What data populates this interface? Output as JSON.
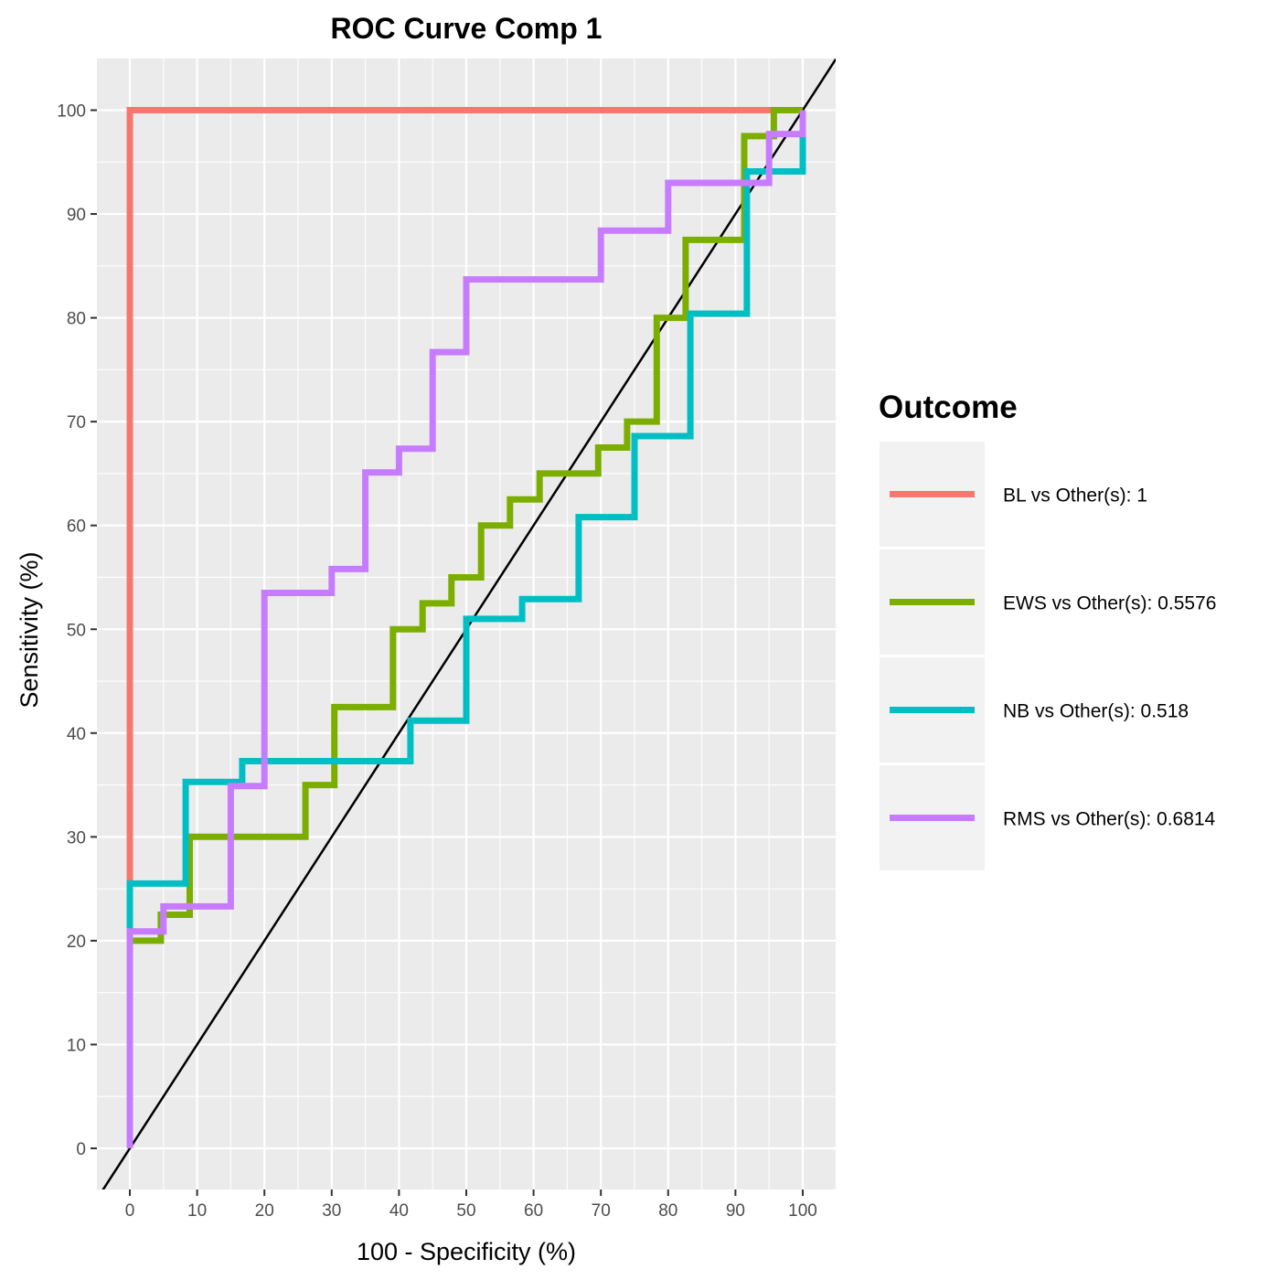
{
  "chart_data": {
    "type": "line",
    "title": "ROC Curve Comp 1",
    "xlabel": "100 - Specificity (%)",
    "ylabel": "Sensitivity (%)",
    "xlim": [
      -5,
      105
    ],
    "ylim": [
      -5,
      105
    ],
    "x_ticks": [
      "0",
      "10",
      "20",
      "30",
      "40",
      "50",
      "60",
      "70",
      "80",
      "90",
      "100"
    ],
    "y_ticks": [
      "0",
      "10",
      "20",
      "30",
      "40",
      "50",
      "60",
      "70",
      "80",
      "90",
      "100"
    ],
    "grid": true,
    "legend_title": "Outcome",
    "legend_position": "right",
    "reference_line": {
      "x": [
        0,
        100
      ],
      "y": [
        0,
        100
      ],
      "color": "#000000"
    },
    "series": [
      {
        "name": "BL vs Other(s): 1",
        "color": "#F8766D",
        "points": [
          [
            0,
            0
          ],
          [
            0,
            100
          ],
          [
            100,
            100
          ]
        ]
      },
      {
        "name": "EWS vs Other(s): 0.5576",
        "color": "#7CAE00",
        "points": [
          [
            0,
            0
          ],
          [
            0,
            20
          ],
          [
            4.6,
            20
          ],
          [
            4.6,
            22.5
          ],
          [
            8.9,
            22.5
          ],
          [
            8.9,
            30
          ],
          [
            26.1,
            30
          ],
          [
            26.1,
            35
          ],
          [
            30.4,
            35
          ],
          [
            30.4,
            42.5
          ],
          [
            39.1,
            42.5
          ],
          [
            39.1,
            50
          ],
          [
            43.5,
            50
          ],
          [
            43.5,
            52.5
          ],
          [
            47.8,
            52.5
          ],
          [
            47.8,
            55
          ],
          [
            52.2,
            55
          ],
          [
            52.2,
            60
          ],
          [
            56.5,
            60
          ],
          [
            56.5,
            62.5
          ],
          [
            60.9,
            62.5
          ],
          [
            60.9,
            65
          ],
          [
            69.6,
            65
          ],
          [
            69.6,
            67.5
          ],
          [
            73.9,
            67.5
          ],
          [
            73.9,
            70
          ],
          [
            78.3,
            70
          ],
          [
            78.3,
            80
          ],
          [
            82.6,
            80
          ],
          [
            82.6,
            87.5
          ],
          [
            91.3,
            87.5
          ],
          [
            91.3,
            97.5
          ],
          [
            95.7,
            97.5
          ],
          [
            95.7,
            100
          ],
          [
            100,
            100
          ]
        ]
      },
      {
        "name": "NB vs Other(s): 0.518",
        "color": "#00BFC4",
        "points": [
          [
            0,
            0
          ],
          [
            0,
            25.5
          ],
          [
            8.3,
            25.5
          ],
          [
            8.3,
            35.3
          ],
          [
            16.7,
            35.3
          ],
          [
            16.7,
            37.3
          ],
          [
            41.7,
            37.3
          ],
          [
            41.7,
            41.2
          ],
          [
            50,
            41.2
          ],
          [
            50,
            51
          ],
          [
            58.3,
            51
          ],
          [
            58.3,
            52.9
          ],
          [
            66.7,
            52.9
          ],
          [
            66.7,
            60.8
          ],
          [
            75,
            60.8
          ],
          [
            75,
            68.6
          ],
          [
            83.3,
            68.6
          ],
          [
            83.3,
            80.4
          ],
          [
            91.7,
            80.4
          ],
          [
            91.7,
            94.1
          ],
          [
            100,
            94.1
          ],
          [
            100,
            100
          ]
        ]
      },
      {
        "name": "RMS vs Other(s): 0.6814",
        "color": "#C77CFF",
        "points": [
          [
            0,
            0
          ],
          [
            0,
            20.9
          ],
          [
            5,
            20.9
          ],
          [
            5,
            23.3
          ],
          [
            15,
            23.3
          ],
          [
            15,
            34.9
          ],
          [
            20,
            34.9
          ],
          [
            20,
            53.5
          ],
          [
            30,
            53.5
          ],
          [
            30,
            55.8
          ],
          [
            35,
            55.8
          ],
          [
            35,
            65.1
          ],
          [
            40,
            65.1
          ],
          [
            40,
            67.4
          ],
          [
            45,
            67.4
          ],
          [
            45,
            76.7
          ],
          [
            50,
            76.7
          ],
          [
            50,
            83.7
          ],
          [
            70,
            83.7
          ],
          [
            70,
            88.4
          ],
          [
            80,
            88.4
          ],
          [
            80,
            93
          ],
          [
            95,
            93
          ],
          [
            95,
            97.7
          ],
          [
            100,
            97.7
          ],
          [
            100,
            100
          ]
        ]
      }
    ]
  }
}
